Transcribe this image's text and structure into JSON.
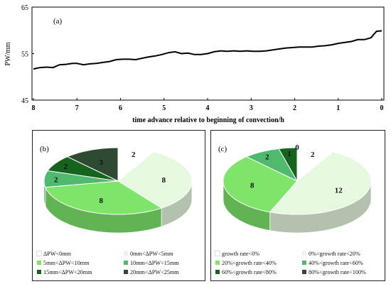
{
  "chart_data": [
    {
      "type": "line",
      "panel_label": "(a)",
      "xlabel": "time advance relative to beginning of convection/h",
      "ylabel": "PW/mm",
      "xlim": [
        8,
        0
      ],
      "ylim": [
        45,
        65
      ],
      "xticks": [
        8,
        7,
        6,
        5,
        4,
        3,
        2,
        1,
        0
      ],
      "yticks": [
        45,
        55,
        65
      ],
      "grid": false,
      "series": [
        {
          "color": "#000000",
          "x": [
            8.0,
            7.85,
            7.7,
            7.55,
            7.4,
            7.25,
            7.1,
            7.0,
            6.85,
            6.7,
            6.55,
            6.4,
            6.25,
            6.1,
            5.95,
            5.8,
            5.65,
            5.5,
            5.35,
            5.2,
            5.05,
            4.9,
            4.75,
            4.6,
            4.45,
            4.3,
            4.15,
            4.0,
            3.85,
            3.7,
            3.55,
            3.4,
            3.25,
            3.1,
            2.95,
            2.8,
            2.65,
            2.5,
            2.35,
            2.2,
            2.05,
            1.9,
            1.75,
            1.6,
            1.45,
            1.3,
            1.15,
            1.0,
            0.85,
            0.7,
            0.55,
            0.4,
            0.25,
            0.12,
            0.0
          ],
          "values": [
            51.7,
            52.0,
            52.1,
            52.0,
            52.6,
            52.7,
            52.9,
            52.9,
            52.6,
            52.8,
            52.9,
            53.1,
            53.3,
            53.7,
            53.8,
            53.8,
            53.7,
            54.0,
            54.3,
            54.5,
            54.8,
            55.2,
            55.4,
            55.0,
            55.1,
            54.8,
            54.8,
            55.0,
            55.4,
            55.6,
            55.5,
            55.6,
            55.5,
            55.6,
            55.5,
            55.5,
            55.6,
            55.8,
            56.0,
            56.2,
            56.3,
            56.4,
            56.4,
            56.4,
            56.6,
            56.7,
            56.9,
            57.2,
            57.4,
            57.6,
            58.0,
            58.0,
            58.4,
            59.8,
            59.9
          ]
        }
      ]
    },
    {
      "type": "pie",
      "panel_label": "(b)",
      "categories": [
        "ΔPW<0mm",
        "0mm<ΔPW<5mm",
        "5mm<ΔPW<10mm",
        "10mm<ΔPW<15mm",
        "15mm<ΔPW<20mm",
        "20mm<ΔPW<25mm"
      ],
      "values": [
        2,
        8,
        8,
        2,
        2,
        3
      ],
      "colors": [
        "#ffffff",
        "#e6f8df",
        "#7ee56a",
        "#4fb96e",
        "#16631e",
        "#2e4a32"
      ],
      "legend_position": "bottom"
    },
    {
      "type": "pie",
      "panel_label": "(c)",
      "categories": [
        "growth rate<0%",
        "0%<growth rate<20%",
        "20%<growth rate<40%",
        "40%<growth rate<60%",
        "60%<growth rate<80%",
        "80%<growth rate<100%"
      ],
      "values": [
        2,
        12,
        8,
        2,
        1,
        0
      ],
      "colors": [
        "#ffffff",
        "#e6f8df",
        "#7ee56a",
        "#4fb96e",
        "#16631e",
        "#2e4a32"
      ],
      "legend_position": "bottom"
    }
  ]
}
